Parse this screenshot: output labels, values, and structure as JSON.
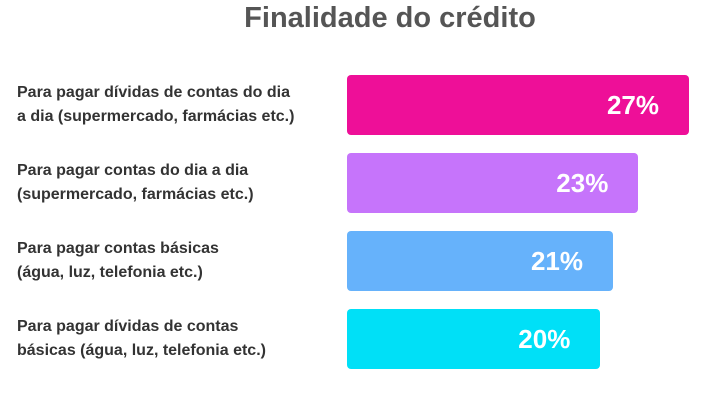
{
  "chart_data": {
    "type": "bar",
    "orientation": "horizontal",
    "title": "Finalidade do crédito",
    "categories": [
      "Para pagar dívidas de contas do dia\na dia (supermercado, farmácias etc.)",
      "Para pagar contas do dia a dia\n(supermercado, farmácias etc.)",
      "Para pagar contas básicas\n(água, luz, telefonia etc.)",
      "Para pagar dívidas de contas\nbásicas (água, luz, telefonia etc.)"
    ],
    "values": [
      27,
      23,
      21,
      20
    ],
    "value_labels": [
      "27%",
      "23%",
      "21%",
      "20%"
    ],
    "colors": [
      "#ee0f98",
      "#c674fb",
      "#66b2fb",
      "#00e0f7"
    ]
  }
}
